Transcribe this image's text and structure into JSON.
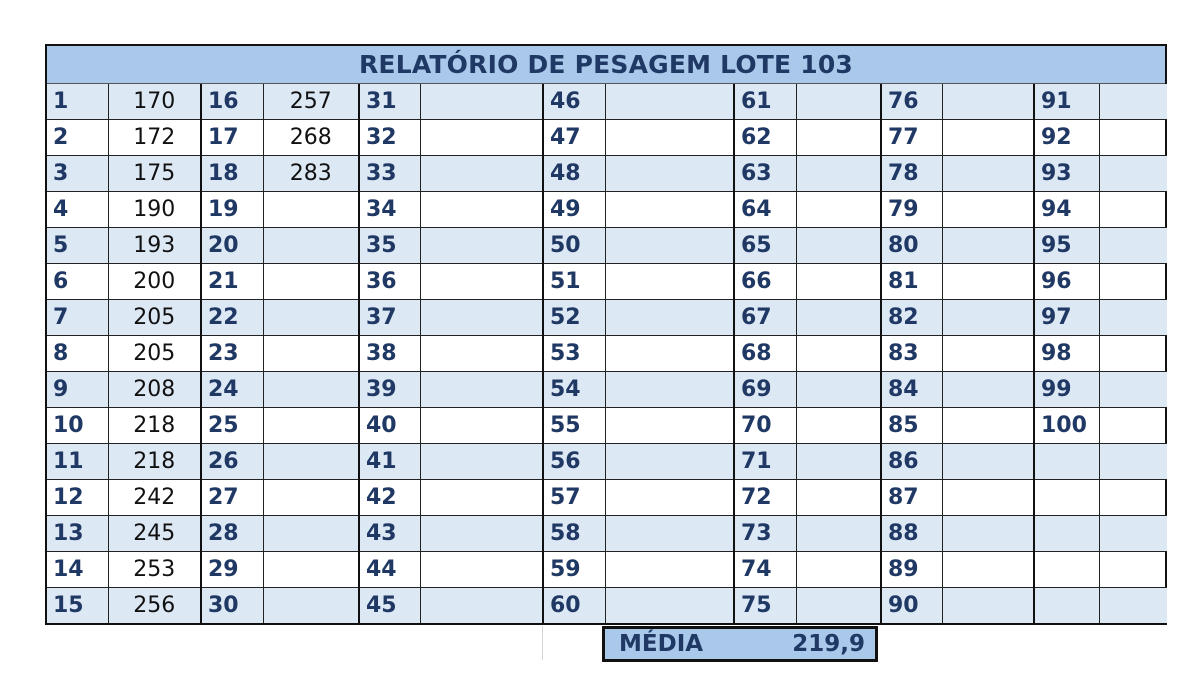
{
  "title": "RELATÓRIO DE PESAGEM LOTE 103",
  "rows": [
    {
      "cells": [
        "1",
        "170",
        "16",
        "257",
        "31",
        "",
        "46",
        "",
        "61",
        "",
        "76",
        "",
        "91",
        ""
      ]
    },
    {
      "cells": [
        "2",
        "172",
        "17",
        "268",
        "32",
        "",
        "47",
        "",
        "62",
        "",
        "77",
        "",
        "92",
        ""
      ]
    },
    {
      "cells": [
        "3",
        "175",
        "18",
        "283",
        "33",
        "",
        "48",
        "",
        "63",
        "",
        "78",
        "",
        "93",
        ""
      ]
    },
    {
      "cells": [
        "4",
        "190",
        "19",
        "",
        "34",
        "",
        "49",
        "",
        "64",
        "",
        "79",
        "",
        "94",
        ""
      ]
    },
    {
      "cells": [
        "5",
        "193",
        "20",
        "",
        "35",
        "",
        "50",
        "",
        "65",
        "",
        "80",
        "",
        "95",
        ""
      ]
    },
    {
      "cells": [
        "6",
        "200",
        "21",
        "",
        "36",
        "",
        "51",
        "",
        "66",
        "",
        "81",
        "",
        "96",
        ""
      ]
    },
    {
      "cells": [
        "7",
        "205",
        "22",
        "",
        "37",
        "",
        "52",
        "",
        "67",
        "",
        "82",
        "",
        "97",
        ""
      ]
    },
    {
      "cells": [
        "8",
        "205",
        "23",
        "",
        "38",
        "",
        "53",
        "",
        "68",
        "",
        "83",
        "",
        "98",
        ""
      ]
    },
    {
      "cells": [
        "9",
        "208",
        "24",
        "",
        "39",
        "",
        "54",
        "",
        "69",
        "",
        "84",
        "",
        "99",
        ""
      ]
    },
    {
      "cells": [
        "10",
        "218",
        "25",
        "",
        "40",
        "",
        "55",
        "",
        "70",
        "",
        "85",
        "",
        "100",
        ""
      ]
    },
    {
      "cells": [
        "11",
        "218",
        "26",
        "",
        "41",
        "",
        "56",
        "",
        "71",
        "",
        "86",
        "",
        "",
        ""
      ]
    },
    {
      "cells": [
        "12",
        "242",
        "27",
        "",
        "42",
        "",
        "57",
        "",
        "72",
        "",
        "87",
        "",
        "",
        ""
      ]
    },
    {
      "cells": [
        "13",
        "245",
        "28",
        "",
        "43",
        "",
        "58",
        "",
        "73",
        "",
        "88",
        "",
        "",
        ""
      ]
    },
    {
      "cells": [
        "14",
        "253",
        "29",
        "",
        "44",
        "",
        "59",
        "",
        "74",
        "",
        "89",
        "",
        "",
        ""
      ]
    },
    {
      "cells": [
        "15",
        "256",
        "30",
        "",
        "45",
        "",
        "60",
        "",
        "75",
        "",
        "90",
        "",
        "",
        ""
      ]
    }
  ],
  "media": {
    "label": "MÉDIA",
    "value": "219,9"
  }
}
